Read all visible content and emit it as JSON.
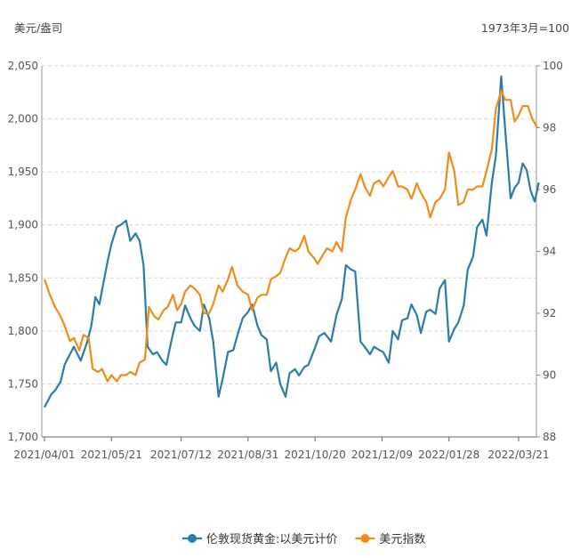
{
  "chart_data": {
    "type": "line",
    "title": "",
    "left_axis_unit": "美元/盎司",
    "right_axis_unit": "1973年3月=100",
    "x_ticks": [
      "2021/04/01",
      "2021/05/21",
      "2021/07/12",
      "2021/08/31",
      "2021/10/20",
      "2021/12/09",
      "2022/01/28",
      "2022/03/21"
    ],
    "y_left": {
      "range": [
        1700,
        2050
      ],
      "ticks": [
        "1,700",
        "1,750",
        "1,800",
        "1,850",
        "1,900",
        "1,950",
        "2,000",
        "2,050"
      ]
    },
    "y_right": {
      "range": [
        88,
        100
      ],
      "ticks": [
        "88",
        "90",
        "92",
        "94",
        "96",
        "98",
        "100"
      ]
    },
    "grid": "horizontal dashed",
    "legend_position": "bottom-center",
    "series": [
      {
        "name": "伦敦现货黄金:以美元计价",
        "color": "#2b7bab",
        "axis": "left",
        "points": [
          [
            "2021/04/01",
            1728
          ],
          [
            "2021/04/06",
            1740
          ],
          [
            "2021/04/09",
            1744
          ],
          [
            "2021/04/13",
            1752
          ],
          [
            "2021/04/16",
            1768
          ],
          [
            "2021/04/20",
            1778
          ],
          [
            "2021/04/23",
            1785
          ],
          [
            "2021/04/28",
            1772
          ],
          [
            "2021/05/03",
            1790
          ],
          [
            "2021/05/06",
            1805
          ],
          [
            "2021/05/09",
            1832
          ],
          [
            "2021/05/12",
            1825
          ],
          [
            "2021/05/15",
            1845
          ],
          [
            "2021/05/18",
            1865
          ],
          [
            "2021/05/21",
            1882
          ],
          [
            "2021/05/25",
            1898
          ],
          [
            "2021/05/28",
            1900
          ],
          [
            "2021/06/01",
            1904
          ],
          [
            "2021/06/04",
            1885
          ],
          [
            "2021/06/08",
            1892
          ],
          [
            "2021/06/11",
            1885
          ],
          [
            "2021/06/14",
            1862
          ],
          [
            "2021/06/17",
            1785
          ],
          [
            "2021/06/21",
            1778
          ],
          [
            "2021/06/24",
            1780
          ],
          [
            "2021/06/28",
            1772
          ],
          [
            "2021/07/01",
            1768
          ],
          [
            "2021/07/05",
            1792
          ],
          [
            "2021/07/08",
            1808
          ],
          [
            "2021/07/12",
            1808
          ],
          [
            "2021/07/15",
            1824
          ],
          [
            "2021/07/19",
            1812
          ],
          [
            "2021/07/22",
            1805
          ],
          [
            "2021/07/26",
            1800
          ],
          [
            "2021/07/29",
            1825
          ],
          [
            "2021/08/02",
            1812
          ],
          [
            "2021/08/05",
            1790
          ],
          [
            "2021/08/09",
            1738
          ],
          [
            "2021/08/12",
            1755
          ],
          [
            "2021/08/16",
            1780
          ],
          [
            "2021/08/20",
            1782
          ],
          [
            "2021/08/24",
            1800
          ],
          [
            "2021/08/27",
            1812
          ],
          [
            "2021/08/31",
            1818
          ],
          [
            "2021/09/03",
            1825
          ],
          [
            "2021/09/07",
            1805
          ],
          [
            "2021/09/10",
            1796
          ],
          [
            "2021/09/14",
            1792
          ],
          [
            "2021/09/17",
            1762
          ],
          [
            "2021/09/21",
            1770
          ],
          [
            "2021/09/24",
            1750
          ],
          [
            "2021/09/28",
            1738
          ],
          [
            "2021/10/01",
            1760
          ],
          [
            "2021/10/05",
            1764
          ],
          [
            "2021/10/08",
            1758
          ],
          [
            "2021/10/12",
            1766
          ],
          [
            "2021/10/15",
            1768
          ],
          [
            "2021/10/20",
            1784
          ],
          [
            "2021/10/23",
            1795
          ],
          [
            "2021/10/27",
            1798
          ],
          [
            "2021/11/01",
            1790
          ],
          [
            "2021/11/05",
            1815
          ],
          [
            "2021/11/09",
            1830
          ],
          [
            "2021/11/12",
            1862
          ],
          [
            "2021/11/16",
            1858
          ],
          [
            "2021/11/19",
            1856
          ],
          [
            "2021/11/23",
            1790
          ],
          [
            "2021/11/26",
            1785
          ],
          [
            "2021/11/30",
            1778
          ],
          [
            "2021/12/03",
            1785
          ],
          [
            "2021/12/07",
            1782
          ],
          [
            "2021/12/10",
            1780
          ],
          [
            "2021/12/14",
            1770
          ],
          [
            "2021/12/17",
            1800
          ],
          [
            "2021/12/21",
            1792
          ],
          [
            "2021/12/24",
            1810
          ],
          [
            "2021/12/28",
            1812
          ],
          [
            "2021/12/31",
            1825
          ],
          [
            "2022/01/04",
            1815
          ],
          [
            "2022/01/07",
            1798
          ],
          [
            "2022/01/11",
            1818
          ],
          [
            "2022/01/14",
            1820
          ],
          [
            "2022/01/18",
            1816
          ],
          [
            "2022/01/21",
            1840
          ],
          [
            "2022/01/25",
            1848
          ],
          [
            "2022/01/28",
            1790
          ],
          [
            "2022/02/01",
            1802
          ],
          [
            "2022/02/04",
            1808
          ],
          [
            "2022/02/08",
            1824
          ],
          [
            "2022/02/11",
            1858
          ],
          [
            "2022/02/15",
            1870
          ],
          [
            "2022/02/18",
            1898
          ],
          [
            "2022/02/22",
            1905
          ],
          [
            "2022/02/25",
            1890
          ],
          [
            "2022/03/01",
            1940
          ],
          [
            "2022/03/04",
            1965
          ],
          [
            "2022/03/08",
            2040
          ],
          [
            "2022/03/11",
            1990
          ],
          [
            "2022/03/15",
            1925
          ],
          [
            "2022/03/18",
            1935
          ],
          [
            "2022/03/21",
            1940
          ],
          [
            "2022/03/24",
            1958
          ],
          [
            "2022/03/27",
            1952
          ],
          [
            "2022/03/30",
            1932
          ],
          [
            "2022/04/02",
            1922
          ],
          [
            "2022/04/05",
            1940
          ]
        ]
      },
      {
        "name": "美元指数",
        "color": "#f08c1a",
        "axis": "right",
        "points": [
          [
            "2021/04/01",
            93.1
          ],
          [
            "2021/04/05",
            92.6
          ],
          [
            "2021/04/09",
            92.2
          ],
          [
            "2021/04/13",
            91.9
          ],
          [
            "2021/04/16",
            91.6
          ],
          [
            "2021/04/20",
            91.1
          ],
          [
            "2021/04/23",
            91.2
          ],
          [
            "2021/04/27",
            90.8
          ],
          [
            "2021/04/30",
            91.3
          ],
          [
            "2021/05/04",
            91.2
          ],
          [
            "2021/05/07",
            90.2
          ],
          [
            "2021/05/11",
            90.1
          ],
          [
            "2021/05/14",
            90.2
          ],
          [
            "2021/05/18",
            89.8
          ],
          [
            "2021/05/21",
            90.0
          ],
          [
            "2021/05/25",
            89.8
          ],
          [
            "2021/05/28",
            90.0
          ],
          [
            "2021/06/01",
            90.0
          ],
          [
            "2021/06/04",
            90.1
          ],
          [
            "2021/06/08",
            90.0
          ],
          [
            "2021/06/11",
            90.4
          ],
          [
            "2021/06/15",
            90.5
          ],
          [
            "2021/06/18",
            92.2
          ],
          [
            "2021/06/22",
            91.9
          ],
          [
            "2021/06/25",
            91.8
          ],
          [
            "2021/06/29",
            92.1
          ],
          [
            "2021/07/02",
            92.2
          ],
          [
            "2021/07/06",
            92.6
          ],
          [
            "2021/07/09",
            92.1
          ],
          [
            "2021/07/12",
            92.3
          ],
          [
            "2021/07/15",
            92.7
          ],
          [
            "2021/07/19",
            92.9
          ],
          [
            "2021/07/22",
            92.8
          ],
          [
            "2021/07/26",
            92.6
          ],
          [
            "2021/07/29",
            92.0
          ],
          [
            "2021/08/02",
            92.0
          ],
          [
            "2021/08/05",
            92.3
          ],
          [
            "2021/08/09",
            92.9
          ],
          [
            "2021/08/12",
            92.7
          ],
          [
            "2021/08/16",
            93.1
          ],
          [
            "2021/08/19",
            93.5
          ],
          [
            "2021/08/23",
            92.9
          ],
          [
            "2021/08/27",
            92.7
          ],
          [
            "2021/08/31",
            92.6
          ],
          [
            "2021/09/03",
            92.1
          ],
          [
            "2021/09/07",
            92.5
          ],
          [
            "2021/09/10",
            92.6
          ],
          [
            "2021/09/14",
            92.6
          ],
          [
            "2021/09/17",
            93.1
          ],
          [
            "2021/09/21",
            93.2
          ],
          [
            "2021/09/24",
            93.3
          ],
          [
            "2021/09/28",
            93.8
          ],
          [
            "2021/10/01",
            94.1
          ],
          [
            "2021/10/05",
            94.0
          ],
          [
            "2021/10/08",
            94.1
          ],
          [
            "2021/10/12",
            94.5
          ],
          [
            "2021/10/15",
            94.0
          ],
          [
            "2021/10/19",
            93.8
          ],
          [
            "2021/10/22",
            93.6
          ],
          [
            "2021/10/26",
            93.9
          ],
          [
            "2021/10/29",
            94.1
          ],
          [
            "2021/11/02",
            94.0
          ],
          [
            "2021/11/05",
            94.3
          ],
          [
            "2021/11/09",
            94.0
          ],
          [
            "2021/11/12",
            95.1
          ],
          [
            "2021/11/16",
            95.7
          ],
          [
            "2021/11/19",
            96.0
          ],
          [
            "2021/11/23",
            96.5
          ],
          [
            "2021/11/26",
            96.1
          ],
          [
            "2021/11/30",
            95.8
          ],
          [
            "2021/12/03",
            96.2
          ],
          [
            "2021/12/07",
            96.3
          ],
          [
            "2021/12/10",
            96.1
          ],
          [
            "2021/12/14",
            96.4
          ],
          [
            "2021/12/17",
            96.6
          ],
          [
            "2021/12/21",
            96.1
          ],
          [
            "2021/12/24",
            96.1
          ],
          [
            "2021/12/28",
            96.0
          ],
          [
            "2021/12/31",
            95.7
          ],
          [
            "2022/01/04",
            96.2
          ],
          [
            "2022/01/07",
            95.9
          ],
          [
            "2022/01/11",
            95.6
          ],
          [
            "2022/01/14",
            95.1
          ],
          [
            "2022/01/18",
            95.6
          ],
          [
            "2022/01/21",
            95.7
          ],
          [
            "2022/01/25",
            96.0
          ],
          [
            "2022/01/28",
            97.2
          ],
          [
            "2022/02/01",
            96.6
          ],
          [
            "2022/02/04",
            95.5
          ],
          [
            "2022/02/08",
            95.6
          ],
          [
            "2022/02/11",
            96.0
          ],
          [
            "2022/02/15",
            96.0
          ],
          [
            "2022/02/18",
            96.1
          ],
          [
            "2022/02/22",
            96.1
          ],
          [
            "2022/02/25",
            96.6
          ],
          [
            "2022/03/01",
            97.3
          ],
          [
            "2022/03/04",
            98.6
          ],
          [
            "2022/03/08",
            99.2
          ],
          [
            "2022/03/11",
            98.9
          ],
          [
            "2022/03/15",
            98.9
          ],
          [
            "2022/03/18",
            98.2
          ],
          [
            "2022/03/21",
            98.4
          ],
          [
            "2022/03/24",
            98.7
          ],
          [
            "2022/03/28",
            98.7
          ],
          [
            "2022/03/31",
            98.3
          ],
          [
            "2022/04/04",
            98.0
          ]
        ]
      }
    ]
  }
}
